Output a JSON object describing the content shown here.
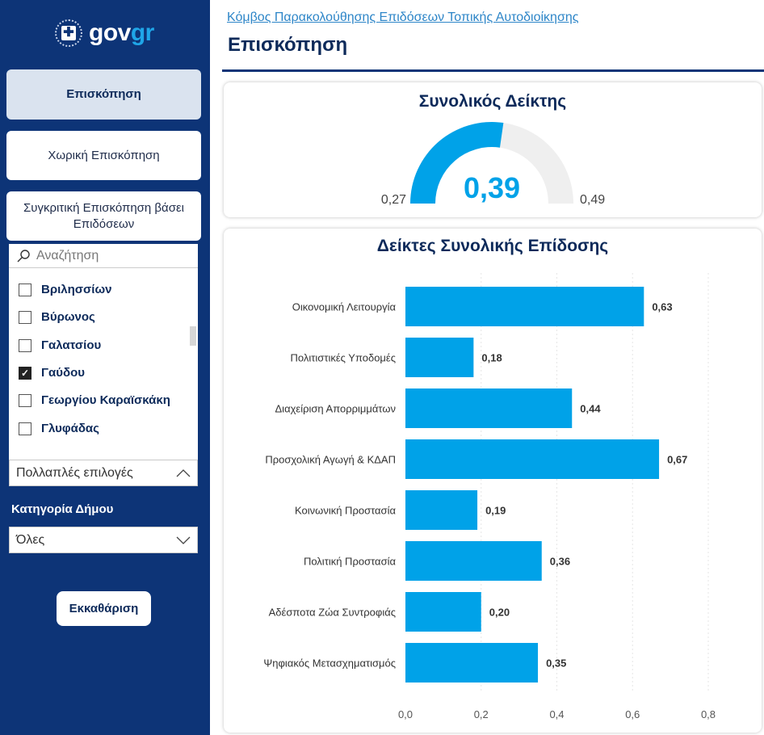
{
  "sidebar": {
    "logo": {
      "text_a": "gov",
      "text_b": "gr"
    },
    "nav": [
      {
        "label": "Επισκόπηση",
        "active": true
      },
      {
        "label": "Χωρική Επισκόπηση"
      },
      {
        "label": "Συγκριτική Επισκόπηση βάσει Επιδόσεων"
      }
    ],
    "slicer": {
      "search_placeholder": "Αναζήτηση",
      "items": [
        {
          "label": "Βριλησσίων",
          "checked": false
        },
        {
          "label": "Βύρωνος",
          "checked": false
        },
        {
          "label": "Γαλατσίου",
          "checked": false
        },
        {
          "label": "Γαύδου",
          "checked": true
        },
        {
          "label": "Γεωργίου Καραϊσκάκη",
          "checked": false
        },
        {
          "label": "Γλυφάδας",
          "checked": false
        }
      ],
      "selection": "Πολλαπλές επιλογές"
    },
    "category_label": "Κατηγορία Δήμου",
    "category_value": "Όλες",
    "clear_button": "Εκκαθάριση"
  },
  "header": {
    "breadcrumb": "Κόμβος Παρακολούθησης Επιδόσεων Τοπικής Αυτοδιοίκησης",
    "title": "Επισκόπηση"
  },
  "gauge": {
    "title": "Συνολικός Δείκτης",
    "value": 0.39,
    "value_label": "0,39",
    "min": 0.27,
    "min_label": "0,27",
    "max": 0.49,
    "max_label": "0,49",
    "color": "#00a2e8"
  },
  "chart_data": {
    "type": "bar",
    "orientation": "horizontal",
    "title": "Δείκτες Συνολικής Επίδοσης",
    "categories": [
      "Οικονομική Λειτουργία",
      "Πολιτιστικές Υποδομές",
      "Διαχείριση Απορριμμάτων",
      "Προσχολική Αγωγή & ΚΔΑΠ",
      "Κοινωνική Προστασία",
      "Πολιτική Προστασία",
      "Αδέσποτα Ζώα Συντροφιάς",
      "Ψηφιακός Μετασχηματισμός"
    ],
    "values": [
      0.63,
      0.18,
      0.44,
      0.67,
      0.19,
      0.36,
      0.2,
      0.35
    ],
    "value_labels": [
      "0,63",
      "0,18",
      "0,44",
      "0,67",
      "0,19",
      "0,36",
      "0,20",
      "0,35"
    ],
    "xlim": [
      0,
      0.8
    ],
    "ticks": [
      "0,0",
      "0,2",
      "0,4",
      "0,6",
      "0,8"
    ],
    "color": "#00a2e8",
    "grid": true
  }
}
